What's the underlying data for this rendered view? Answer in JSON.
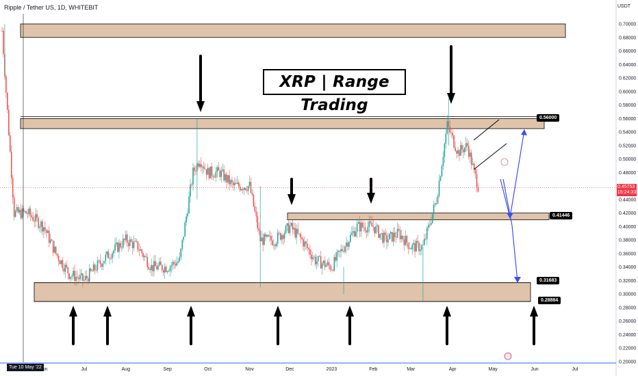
{
  "header": {
    "symbol": "Ripple / Tether US, 1D, WHITEBIT",
    "currency": "USDT",
    "title": "XRP | Range Trading"
  },
  "labels": {
    "resistance": "0.56000",
    "mid_support": "0.41446",
    "support_upper": "0.31683",
    "support_lower": "0.28884"
  },
  "last_price": {
    "price": "0.45753",
    "countdown": "15:24:33"
  },
  "crosshair_date": "Tue 10 May '22",
  "colors": {
    "up": "#26a69a",
    "down": "#ef5350",
    "zone_fill": "#d9b99c",
    "zone_border": "#000000",
    "arrow": "#000000",
    "projection": "#3f4ff0",
    "last_price": "#f23645"
  },
  "chart_data": {
    "type": "candlestick",
    "title": "XRP | Range Trading",
    "xlabel": "",
    "ylabel": "",
    "ylim": [
      0.2,
      0.72
    ],
    "yticks": [
      "0.20000",
      "0.22000",
      "0.24000",
      "0.26000",
      "0.28000",
      "0.30000",
      "0.32000",
      "0.34000",
      "0.36000",
      "0.38000",
      "0.40000",
      "0.42000",
      "0.44000",
      "0.46000",
      "0.48000",
      "0.50000",
      "0.52000",
      "0.54000",
      "0.56000",
      "0.58000",
      "0.60000",
      "0.62000",
      "0.64000",
      "0.66000",
      "0.68000",
      "0.70000"
    ],
    "xticks": [
      "Jun",
      "Jul",
      "Aug",
      "Sep",
      "Oct",
      "Nov",
      "Dec",
      "2023",
      "Feb",
      "Mar",
      "Apr",
      "May",
      "Jun",
      "Jul"
    ],
    "series": [
      {
        "x": [
          "2022-05-01",
          "2022-05-10",
          "2022-05-20",
          "2022-06-01",
          "2022-06-10",
          "2022-06-20",
          "2022-07-01",
          "2022-07-10",
          "2022-07-20",
          "2022-08-01",
          "2022-08-10",
          "2022-08-20",
          "2022-09-01",
          "2022-09-10",
          "2022-09-20",
          "2022-09-25",
          "2022-10-01",
          "2022-10-10",
          "2022-10-20",
          "2022-11-01",
          "2022-11-09",
          "2022-11-20",
          "2022-12-01",
          "2022-12-10",
          "2022-12-20",
          "2023-01-01",
          "2023-01-10",
          "2023-01-20",
          "2023-02-01",
          "2023-02-10",
          "2023-02-20",
          "2023-03-01",
          "2023-03-10",
          "2023-03-20",
          "2023-03-28",
          "2023-04-05",
          "2023-04-12",
          "2023-04-17",
          "2023-04-20"
        ],
        "close": [
          0.69,
          0.42,
          0.42,
          0.4,
          0.36,
          0.33,
          0.32,
          0.34,
          0.36,
          0.38,
          0.37,
          0.34,
          0.34,
          0.35,
          0.48,
          0.5,
          0.48,
          0.48,
          0.46,
          0.46,
          0.38,
          0.38,
          0.4,
          0.38,
          0.35,
          0.34,
          0.37,
          0.4,
          0.4,
          0.38,
          0.39,
          0.37,
          0.37,
          0.44,
          0.55,
          0.51,
          0.52,
          0.48,
          0.46
        ]
      }
    ],
    "zones": [
      {
        "name": "top",
        "low": 0.68,
        "high": 0.7
      },
      {
        "name": "resistance",
        "low": 0.545,
        "high": 0.56
      },
      {
        "name": "mid_support",
        "low": 0.41,
        "high": 0.42
      },
      {
        "name": "support",
        "low": 0.289,
        "high": 0.317
      }
    ],
    "last_price": 0.45753,
    "grid": false
  }
}
